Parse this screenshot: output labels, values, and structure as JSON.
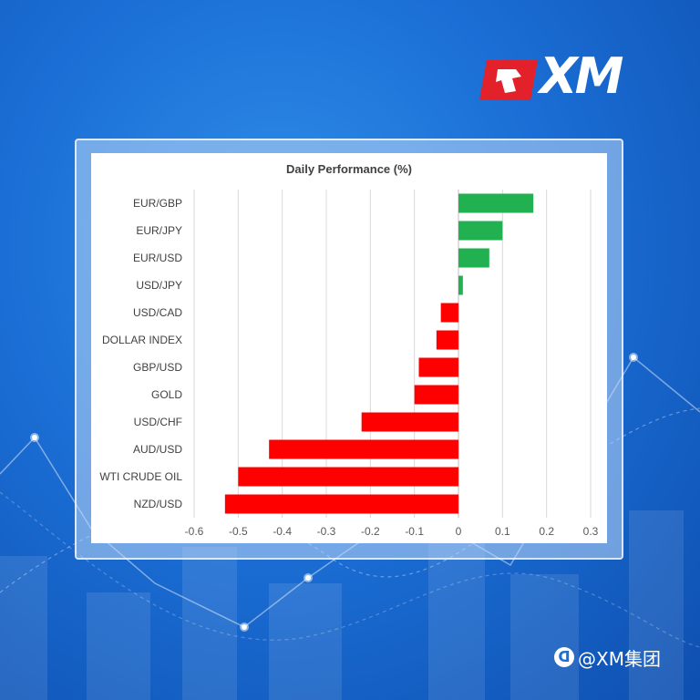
{
  "brand": {
    "logo_text": "XM",
    "watermark_text": "@XM集团",
    "watermark_icon": "wechat-channel-icon",
    "colors": {
      "background": "#1b6fd6",
      "logo_red": "#e3212b",
      "positive_bar": "#22b150",
      "negative_bar": "#ff0000"
    }
  },
  "chart_data": {
    "type": "bar",
    "orientation": "horizontal",
    "title": "Daily Performance (%)",
    "categories": [
      "EUR/GBP",
      "EUR/JPY",
      "EUR/USD",
      "USD/JPY",
      "USD/CAD",
      "DOLLAR INDEX",
      "GBP/USD",
      "GOLD",
      "USD/CHF",
      "AUD/USD",
      "WTI CRUDE OIL",
      "NZD/USD"
    ],
    "values": [
      0.17,
      0.1,
      0.07,
      0.01,
      -0.04,
      -0.05,
      -0.09,
      -0.1,
      -0.22,
      -0.43,
      -0.5,
      -0.53
    ],
    "xlim": [
      -0.6,
      0.3
    ],
    "xticks": [
      -0.6,
      -0.5,
      -0.4,
      -0.3,
      -0.2,
      -0.1,
      0,
      0.1,
      0.2,
      0.3
    ],
    "xtick_labels": [
      "-0.6",
      "-0.5",
      "-0.4",
      "-0.3",
      "-0.2",
      "-0.1",
      "0",
      "0.1",
      "0.2",
      "0.3"
    ],
    "grid": true,
    "legend": "none"
  }
}
